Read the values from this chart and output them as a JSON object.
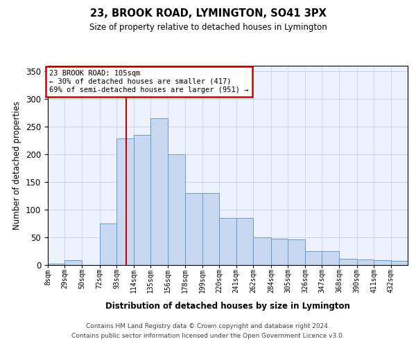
{
  "title": "23, BROOK ROAD, LYMINGTON, SO41 3PX",
  "subtitle": "Size of property relative to detached houses in Lymington",
  "xlabel": "Distribution of detached houses by size in Lymington",
  "ylabel": "Number of detached properties",
  "bar_color": "#c8d8f0",
  "bar_edge_color": "#6699cc",
  "grid_color": "#c8cfe0",
  "background_color": "#edf1fb",
  "annotation_line1": "23 BROOK ROAD: 105sqm",
  "annotation_line2": "← 30% of detached houses are smaller (417)",
  "annotation_line3": "69% of semi-detached houses are larger (951) →",
  "annotation_box_edgecolor": "#cc0000",
  "vline_x": 105,
  "vline_color": "#cc0000",
  "categories": [
    "8sqm",
    "29sqm",
    "50sqm",
    "72sqm",
    "93sqm",
    "114sqm",
    "135sqm",
    "156sqm",
    "178sqm",
    "199sqm",
    "220sqm",
    "241sqm",
    "262sqm",
    "284sqm",
    "305sqm",
    "326sqm",
    "347sqm",
    "368sqm",
    "390sqm",
    "411sqm",
    "432sqm"
  ],
  "bin_edges": [
    8,
    29,
    50,
    72,
    93,
    114,
    135,
    156,
    178,
    199,
    220,
    241,
    262,
    284,
    305,
    326,
    347,
    368,
    390,
    411,
    432,
    453
  ],
  "bar_values": [
    2,
    8,
    0,
    75,
    228,
    235,
    265,
    200,
    130,
    130,
    85,
    85,
    50,
    47,
    46,
    24,
    24,
    11,
    9,
    8,
    7
  ],
  "ylim": [
    0,
    360
  ],
  "yticks": [
    0,
    50,
    100,
    150,
    200,
    250,
    300,
    350
  ],
  "footer_line1": "Contains HM Land Registry data © Crown copyright and database right 2024.",
  "footer_line2": "Contains public sector information licensed under the Open Government Licence v3.0."
}
